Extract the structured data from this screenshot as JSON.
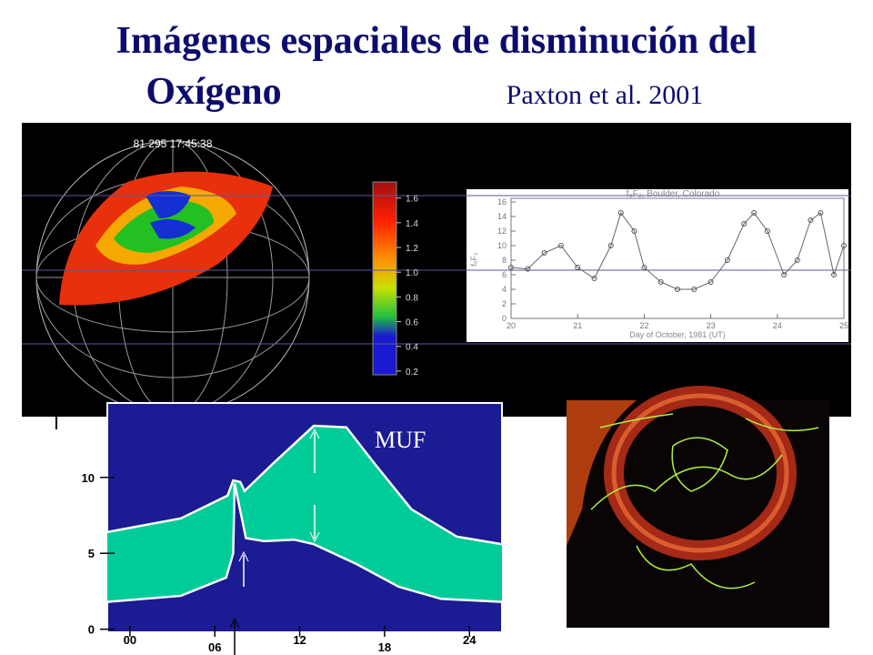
{
  "title": {
    "line1": "Imágenes espaciales de disminución del",
    "line2": "Oxígeno",
    "citation": "Paxton et al. 2001"
  },
  "globe_image": {
    "timestamp": "81 295 17:45:38"
  },
  "colorbar": {
    "ylim": [
      0.17,
      1.73
    ],
    "yticks": [
      0.2,
      0.4,
      0.6,
      0.8,
      {
        "value": 1,
        "label": "1.0"
      },
      1.2,
      1.4,
      1.6
    ]
  },
  "fof2_plot": {
    "title": "f₀F₂, Boulder, Colorado",
    "ylabel": "f₀F₂",
    "xlabel": "Day of October, 1981 (UT)",
    "xlim": [
      20,
      25
    ],
    "ylim": [
      0,
      16.5
    ],
    "xticks": [
      20,
      21,
      22,
      23,
      24,
      25
    ],
    "yticks": [
      0,
      2,
      4,
      6,
      8,
      10,
      12,
      14,
      16
    ],
    "x": [
      20,
      20.25,
      20.5,
      20.75,
      21,
      21.25,
      21.5,
      21.65,
      21.85,
      22,
      22.25,
      22.5,
      22.75,
      23,
      23.25,
      23.5,
      23.65,
      23.85,
      24.1,
      24.3,
      24.5,
      24.65,
      24.85,
      25
    ],
    "values": [
      7,
      6.8,
      9,
      10,
      7,
      5.5,
      10,
      14.5,
      12,
      7,
      5,
      4,
      4,
      5,
      8,
      13,
      14.5,
      12,
      6,
      8,
      13.5,
      14.5,
      6,
      10
    ]
  },
  "muf_chart": {
    "label": "MUF",
    "xlim": [
      -1.6,
      26.3
    ],
    "ylim": [
      -0.2,
      14.9
    ],
    "xticks": [
      {
        "value": 0,
        "label": "00"
      },
      {
        "value": 6,
        "label": "06"
      },
      12,
      18,
      24
    ],
    "yticks": [
      0,
      5,
      10
    ],
    "upper": {
      "x": [
        -1.6,
        3.6,
        6.9,
        7.3,
        7.8,
        8.1,
        10.1,
        13.0,
        15.3,
        17.3,
        19.9,
        23.1,
        26.3
      ],
      "y": [
        6.4,
        7.3,
        8.8,
        9.8,
        9.7,
        9.1,
        10.9,
        13.4,
        13.3,
        10.9,
        7.9,
        6.1,
        5.6
      ]
    },
    "lower": {
      "x": [
        -1.6,
        3.6,
        6.8,
        7.3,
        7.4,
        8.2,
        9.5,
        11.6,
        13.0,
        16.0,
        19.0,
        22.0,
        26.3
      ],
      "y": [
        1.8,
        2.2,
        3.4,
        5.0,
        9.6,
        6.0,
        5.8,
        5.9,
        5.6,
        4.3,
        2.8,
        2.0,
        1.8
      ]
    }
  }
}
